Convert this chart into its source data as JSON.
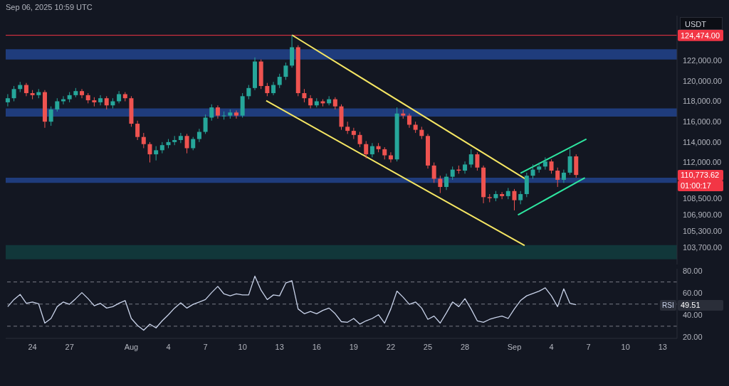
{
  "chart_data": [
    {
      "type": "candlestick",
      "subtitle": "Sep 06, 2025 10:59 UTC",
      "ylabel": "USDT",
      "x": [
        "2025-07-22T00:00",
        "2025-07-22T12:00",
        "2025-07-23T00:00",
        "2025-07-23T12:00",
        "2025-07-24T00:00",
        "2025-07-24T12:00",
        "2025-07-25T00:00",
        "2025-07-25T12:00",
        "2025-07-26T00:00",
        "2025-07-26T12:00",
        "2025-07-27T00:00",
        "2025-07-27T12:00",
        "2025-07-28T00:00",
        "2025-07-28T12:00",
        "2025-07-29T00:00",
        "2025-07-29T12:00",
        "2025-07-30T00:00",
        "2025-07-30T12:00",
        "2025-07-31T00:00",
        "2025-07-31T12:00",
        "2025-08-01T00:00",
        "2025-08-01T12:00",
        "2025-08-02T00:00",
        "2025-08-02T12:00",
        "2025-08-03T00:00",
        "2025-08-03T12:00",
        "2025-08-04T00:00",
        "2025-08-04T12:00",
        "2025-08-05T00:00",
        "2025-08-05T12:00",
        "2025-08-06T00:00",
        "2025-08-06T12:00",
        "2025-08-07T00:00",
        "2025-08-07T12:00",
        "2025-08-08T00:00",
        "2025-08-08T12:00",
        "2025-08-09T00:00",
        "2025-08-09T12:00",
        "2025-08-10T00:00",
        "2025-08-10T12:00",
        "2025-08-11T00:00",
        "2025-08-11T12:00",
        "2025-08-12T00:00",
        "2025-08-12T12:00",
        "2025-08-13T00:00",
        "2025-08-13T12:00",
        "2025-08-14T00:00",
        "2025-08-14T12:00",
        "2025-08-15T00:00",
        "2025-08-15T12:00",
        "2025-08-16T00:00",
        "2025-08-16T12:00",
        "2025-08-17T00:00",
        "2025-08-17T12:00",
        "2025-08-18T00:00",
        "2025-08-18T12:00",
        "2025-08-19T00:00",
        "2025-08-19T12:00",
        "2025-08-20T00:00",
        "2025-08-20T12:00",
        "2025-08-21T00:00",
        "2025-08-21T12:00",
        "2025-08-22T00:00",
        "2025-08-22T12:00",
        "2025-08-23T00:00",
        "2025-08-23T12:00",
        "2025-08-24T00:00",
        "2025-08-24T12:00",
        "2025-08-25T00:00",
        "2025-08-25T12:00",
        "2025-08-26T00:00",
        "2025-08-26T12:00",
        "2025-08-27T00:00",
        "2025-08-27T12:00",
        "2025-08-28T00:00",
        "2025-08-28T12:00",
        "2025-08-29T00:00",
        "2025-08-29T12:00",
        "2025-08-30T00:00",
        "2025-08-30T12:00",
        "2025-08-31T00:00",
        "2025-08-31T12:00",
        "2025-09-01T00:00",
        "2025-09-01T12:00",
        "2025-09-02T00:00",
        "2025-09-02T12:00",
        "2025-09-03T00:00",
        "2025-09-03T12:00",
        "2025-09-04T00:00",
        "2025-09-04T12:00",
        "2025-09-05T00:00",
        "2025-09-05T12:00",
        "2025-09-06T00:00"
      ],
      "ohlc": [
        [
          117900,
          118700,
          117500,
          118300
        ],
        [
          118300,
          119500,
          118000,
          119200
        ],
        [
          119200,
          119900,
          118900,
          119600
        ],
        [
          119600,
          119800,
          118500,
          118800
        ],
        [
          118800,
          119100,
          118200,
          118600
        ],
        [
          118600,
          119200,
          118300,
          118900
        ],
        [
          118900,
          119100,
          115400,
          116000
        ],
        [
          116000,
          117500,
          115600,
          117200
        ],
        [
          117200,
          118300,
          117000,
          118000
        ],
        [
          118000,
          118500,
          117700,
          118200
        ],
        [
          118200,
          118900,
          117900,
          118600
        ],
        [
          118600,
          119300,
          118400,
          119000
        ],
        [
          119000,
          119200,
          118300,
          118600
        ],
        [
          118600,
          118800,
          117800,
          118100
        ],
        [
          118100,
          118400,
          117500,
          117900
        ],
        [
          117900,
          118600,
          117600,
          118300
        ],
        [
          118300,
          118500,
          117200,
          117600
        ],
        [
          117600,
          118300,
          117300,
          118000
        ],
        [
          118000,
          119000,
          117800,
          118700
        ],
        [
          118700,
          118900,
          118000,
          118300
        ],
        [
          118300,
          118500,
          115500,
          115800
        ],
        [
          115800,
          116100,
          114200,
          114500
        ],
        [
          114500,
          114900,
          113400,
          113800
        ],
        [
          113800,
          114000,
          112000,
          112800
        ],
        [
          112800,
          113600,
          112200,
          113200
        ],
        [
          113200,
          114000,
          112900,
          113700
        ],
        [
          113700,
          114300,
          113400,
          114000
        ],
        [
          114000,
          114600,
          113700,
          114200
        ],
        [
          114200,
          114900,
          113900,
          114600
        ],
        [
          114600,
          114800,
          112900,
          113400
        ],
        [
          113400,
          114500,
          113200,
          114300
        ],
        [
          114300,
          115300,
          114000,
          115000
        ],
        [
          115000,
          116700,
          114800,
          116400
        ],
        [
          116400,
          117700,
          116100,
          117400
        ],
        [
          117400,
          117600,
          116300,
          116600
        ],
        [
          116600,
          117000,
          116200,
          116600
        ],
        [
          116600,
          117200,
          116300,
          116900
        ],
        [
          116900,
          117100,
          116300,
          116600
        ],
        [
          116600,
          118800,
          116400,
          118500
        ],
        [
          118500,
          119600,
          118200,
          119300
        ],
        [
          119300,
          122300,
          119100,
          121900
        ],
        [
          121900,
          122100,
          119200,
          119500
        ],
        [
          119500,
          119800,
          118500,
          118800
        ],
        [
          118800,
          119900,
          118600,
          119600
        ],
        [
          119600,
          120700,
          119300,
          120400
        ],
        [
          120400,
          121800,
          120100,
          121500
        ],
        [
          121500,
          124474,
          121300,
          123300
        ],
        [
          123300,
          123500,
          118500,
          118800
        ],
        [
          118800,
          119200,
          117900,
          118300
        ],
        [
          118300,
          118600,
          117300,
          117600
        ],
        [
          117600,
          118300,
          117400,
          118000
        ],
        [
          118000,
          118200,
          117500,
          117800
        ],
        [
          117800,
          118500,
          117600,
          118200
        ],
        [
          118200,
          118400,
          117200,
          117500
        ],
        [
          117500,
          117700,
          115200,
          115500
        ],
        [
          115500,
          116000,
          114800,
          115100
        ],
        [
          115100,
          115400,
          114300,
          114700
        ],
        [
          114700,
          115000,
          113500,
          113800
        ],
        [
          113800,
          114100,
          112400,
          112800
        ],
        [
          112800,
          113900,
          112500,
          113600
        ],
        [
          113600,
          113900,
          113000,
          113300
        ],
        [
          113300,
          113500,
          112300,
          112700
        ],
        [
          112700,
          113000,
          112000,
          112300
        ],
        [
          112300,
          117400,
          112100,
          116800
        ],
        [
          116800,
          117200,
          116300,
          116600
        ],
        [
          116600,
          116800,
          115400,
          115700
        ],
        [
          115700,
          116000,
          114900,
          115200
        ],
        [
          115200,
          115500,
          114300,
          114600
        ],
        [
          114600,
          114800,
          111400,
          111700
        ],
        [
          111700,
          112000,
          110000,
          110400
        ],
        [
          110400,
          110700,
          109000,
          109600
        ],
        [
          109600,
          110900,
          109300,
          110600
        ],
        [
          110600,
          111600,
          110300,
          111300
        ],
        [
          111300,
          111700,
          110900,
          111200
        ],
        [
          111200,
          112100,
          110900,
          111800
        ],
        [
          111800,
          113300,
          111500,
          112800
        ],
        [
          112800,
          113000,
          111200,
          111500
        ],
        [
          111500,
          111700,
          108000,
          108600
        ],
        [
          108600,
          108900,
          108100,
          108500
        ],
        [
          108500,
          109200,
          108200,
          108900
        ],
        [
          108900,
          109100,
          108400,
          108700
        ],
        [
          108700,
          109500,
          108400,
          109200
        ],
        [
          109200,
          109400,
          107300,
          108300
        ],
        [
          108300,
          109200,
          107900,
          108900
        ],
        [
          108900,
          111000,
          108600,
          110700
        ],
        [
          110700,
          111800,
          110400,
          111300
        ],
        [
          111300,
          112000,
          111000,
          111600
        ],
        [
          111600,
          112500,
          111300,
          112100
        ],
        [
          112100,
          112300,
          110900,
          111200
        ],
        [
          111200,
          111500,
          109600,
          110300
        ],
        [
          110300,
          111300,
          110000,
          111000
        ],
        [
          111000,
          113300,
          110800,
          112600
        ],
        [
          112600,
          112800,
          110500,
          110773.62
        ]
      ],
      "series": [
        {
          "type": "line",
          "color": "#f5e663",
          "x": [
            "2025-08-14T00:00",
            "2025-09-02T00:00"
          ],
          "values": [
            124500,
            110300
          ]
        },
        {
          "type": "line",
          "color": "#f5e663",
          "x": [
            "2025-08-11T22:00",
            "2025-09-01T20:00"
          ],
          "values": [
            118060,
            103850
          ]
        },
        {
          "type": "line",
          "color": "#2ee6a0",
          "x": [
            "2025-09-01T12:00",
            "2025-09-06T20:00"
          ],
          "values": [
            110950,
            114300
          ]
        },
        {
          "type": "line",
          "color": "#2ee6a0",
          "x": [
            "2025-09-01T07:00",
            "2025-09-06T17:00"
          ],
          "values": [
            106850,
            110500
          ]
        }
      ],
      "bands": [
        {
          "axis": "y",
          "from": 122100,
          "to": 123100,
          "color": "#1f3c7c"
        },
        {
          "axis": "y",
          "from": 116500,
          "to": 117300,
          "color": "#1f3c7c"
        },
        {
          "axis": "y",
          "from": 110000,
          "to": 110500,
          "color": "#1f3c7c"
        },
        {
          "axis": "y",
          "from": 102500,
          "to": 103900,
          "color": "#11373a"
        }
      ],
      "ref_lines": [
        {
          "axis": "y",
          "value": 124474,
          "label": "124,474.00",
          "color": "#f23645"
        }
      ],
      "annotations": [
        "110,773.62",
        "01:00:17"
      ],
      "xlim": [
        "2025-07-21T20:00",
        "2025-09-14T04:00"
      ],
      "ylim": [
        102000,
        126400
      ],
      "yticks": [
        {
          "value": 122000,
          "label": "122,000.00"
        },
        {
          "value": 120000,
          "label": "120,000.00"
        },
        {
          "value": 118000,
          "label": "118,000.00"
        },
        {
          "value": 116000,
          "label": "116,000.00"
        },
        {
          "value": 114000,
          "label": "114,000.00"
        },
        {
          "value": 112000,
          "label": "112,000.00"
        },
        {
          "value": 108500,
          "label": "108,500.00"
        },
        {
          "value": 106900,
          "label": "106,900.00"
        },
        {
          "value": 105300,
          "label": "105,300.00"
        },
        {
          "value": 103700,
          "label": "103,700.00"
        }
      ],
      "tick_labels": "y"
    },
    {
      "type": "line",
      "x": [
        "2025-07-22T00:00",
        "2025-07-22T12:00",
        "2025-07-23T00:00",
        "2025-07-23T12:00",
        "2025-07-24T00:00",
        "2025-07-24T12:00",
        "2025-07-25T00:00",
        "2025-07-25T12:00",
        "2025-07-26T00:00",
        "2025-07-26T12:00",
        "2025-07-27T00:00",
        "2025-07-27T12:00",
        "2025-07-28T00:00",
        "2025-07-28T12:00",
        "2025-07-29T00:00",
        "2025-07-29T12:00",
        "2025-07-30T00:00",
        "2025-07-30T12:00",
        "2025-07-31T00:00",
        "2025-07-31T12:00",
        "2025-08-01T00:00",
        "2025-08-01T12:00",
        "2025-08-02T00:00",
        "2025-08-02T12:00",
        "2025-08-03T00:00",
        "2025-08-03T12:00",
        "2025-08-04T00:00",
        "2025-08-04T12:00",
        "2025-08-05T00:00",
        "2025-08-05T12:00",
        "2025-08-06T00:00",
        "2025-08-06T12:00",
        "2025-08-07T00:00",
        "2025-08-07T12:00",
        "2025-08-08T00:00",
        "2025-08-08T12:00",
        "2025-08-09T00:00",
        "2025-08-09T12:00",
        "2025-08-10T00:00",
        "2025-08-10T12:00",
        "2025-08-11T00:00",
        "2025-08-11T12:00",
        "2025-08-12T00:00",
        "2025-08-12T12:00",
        "2025-08-13T00:00",
        "2025-08-13T12:00",
        "2025-08-14T00:00",
        "2025-08-14T12:00",
        "2025-08-15T00:00",
        "2025-08-15T12:00",
        "2025-08-16T00:00",
        "2025-08-16T12:00",
        "2025-08-17T00:00",
        "2025-08-17T12:00",
        "2025-08-18T00:00",
        "2025-08-18T12:00",
        "2025-08-19T00:00",
        "2025-08-19T12:00",
        "2025-08-20T00:00",
        "2025-08-20T12:00",
        "2025-08-21T00:00",
        "2025-08-21T12:00",
        "2025-08-22T00:00",
        "2025-08-22T12:00",
        "2025-08-23T00:00",
        "2025-08-23T12:00",
        "2025-08-24T00:00",
        "2025-08-24T12:00",
        "2025-08-25T00:00",
        "2025-08-25T12:00",
        "2025-08-26T00:00",
        "2025-08-26T12:00",
        "2025-08-27T00:00",
        "2025-08-27T12:00",
        "2025-08-28T00:00",
        "2025-08-28T12:00",
        "2025-08-29T00:00",
        "2025-08-29T12:00",
        "2025-08-30T00:00",
        "2025-08-30T12:00",
        "2025-08-31T00:00",
        "2025-08-31T12:00",
        "2025-09-01T00:00",
        "2025-09-01T12:00",
        "2025-09-02T00:00",
        "2025-09-02T12:00",
        "2025-09-03T00:00",
        "2025-09-03T12:00",
        "2025-09-04T00:00",
        "2025-09-04T12:00",
        "2025-09-05T00:00",
        "2025-09-05T12:00",
        "2025-09-06T00:00"
      ],
      "series": [
        {
          "name": "RSI",
          "color": "#c9d3ea",
          "values": [
            47.7,
            54.1,
            58.7,
            50.7,
            51.9,
            50.2,
            32.8,
            37.0,
            47.7,
            51.9,
            49.8,
            54.9,
            60.4,
            54.9,
            48.5,
            50.7,
            46.4,
            47.7,
            50.7,
            53.2,
            37.0,
            30.7,
            26.4,
            31.9,
            28.5,
            34.9,
            40.4,
            46.4,
            51.1,
            46.4,
            49.8,
            51.9,
            54.1,
            60.4,
            66.0,
            59.2,
            57.5,
            59.2,
            58.3,
            58.3,
            75.3,
            62.6,
            54.1,
            58.3,
            57.5,
            69.0,
            71.1,
            45.6,
            41.3,
            43.4,
            41.3,
            44.3,
            46.4,
            41.3,
            34.1,
            33.6,
            37.0,
            31.9,
            34.9,
            37.0,
            40.4,
            32.8,
            45.6,
            61.7,
            56.2,
            49.8,
            51.9,
            46.4,
            36.2,
            39.2,
            32.8,
            42.1,
            51.9,
            47.7,
            54.9,
            45.6,
            34.9,
            33.6,
            36.2,
            37.9,
            39.2,
            37.0,
            45.6,
            53.2,
            57.5,
            59.6,
            61.7,
            64.7,
            57.5,
            47.7,
            63.8,
            50.7,
            49.51
          ]
        }
      ],
      "ref_lines": [
        {
          "axis": "y",
          "value": 70,
          "color": "#787b86",
          "line_style": "dashed"
        },
        {
          "axis": "y",
          "value": 50,
          "color": "#787b86",
          "line_style": "dashed"
        },
        {
          "axis": "y",
          "value": 30,
          "color": "#787b86",
          "line_style": "dashed"
        }
      ],
      "annotations": [
        "49.51"
      ],
      "xlim": [
        "2025-07-21T20:00",
        "2025-09-14T04:00"
      ],
      "xticks": [
        {
          "value": "2025-07-24",
          "label": "24"
        },
        {
          "value": "2025-07-27",
          "label": "27"
        },
        {
          "value": "2025-08-01",
          "label": "Aug"
        },
        {
          "value": "2025-08-04",
          "label": "4"
        },
        {
          "value": "2025-08-07",
          "label": "7"
        },
        {
          "value": "2025-08-10",
          "label": "10"
        },
        {
          "value": "2025-08-13",
          "label": "13"
        },
        {
          "value": "2025-08-16",
          "label": "16"
        },
        {
          "value": "2025-08-19",
          "label": "19"
        },
        {
          "value": "2025-08-22",
          "label": "22"
        },
        {
          "value": "2025-08-25",
          "label": "25"
        },
        {
          "value": "2025-08-28",
          "label": "28"
        },
        {
          "value": "2025-09-01",
          "label": "Sep"
        },
        {
          "value": "2025-09-04",
          "label": "4"
        },
        {
          "value": "2025-09-07",
          "label": "7"
        },
        {
          "value": "2025-09-10",
          "label": "10"
        },
        {
          "value": "2025-09-13",
          "label": "13"
        }
      ],
      "ylim": [
        19,
        82
      ],
      "yticks": [
        {
          "value": 20,
          "label": "20.00"
        },
        {
          "value": 40,
          "label": "40.00"
        },
        {
          "value": 60,
          "label": "60.00"
        },
        {
          "value": 80,
          "label": "80.00"
        }
      ]
    }
  ]
}
